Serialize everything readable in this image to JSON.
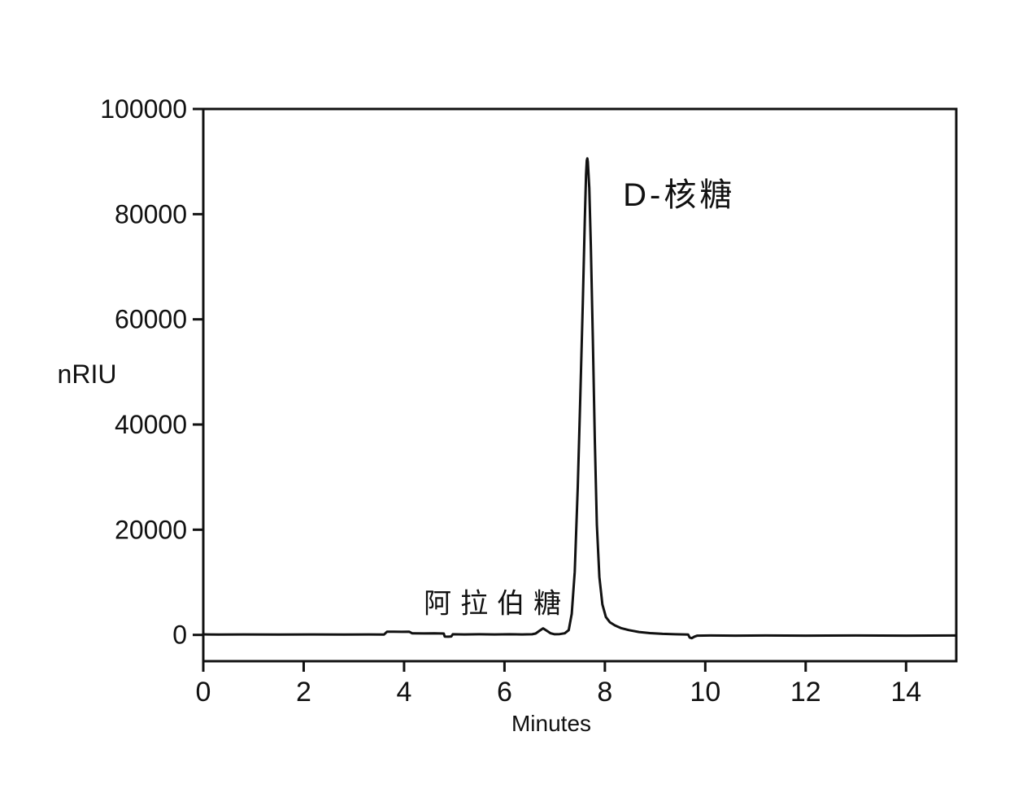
{
  "figure": {
    "background_color": "#ffffff",
    "line_color": "#111111"
  },
  "chart_data": {
    "type": "line",
    "title": "",
    "xlabel": "Minutes",
    "ylabel": "nRIU",
    "xlim": [
      0,
      15
    ],
    "ylim": [
      -5000,
      100000
    ],
    "x_ticks": [
      0,
      2,
      4,
      6,
      8,
      10,
      12,
      14
    ],
    "y_ticks": [
      0,
      20000,
      40000,
      60000,
      80000,
      100000
    ],
    "grid": false,
    "frame": "full-box",
    "legend": "none",
    "annotations": [
      {
        "text": "阿拉伯糖",
        "x": 5.85,
        "y": 6500,
        "role": "peak-label-minor"
      },
      {
        "text": "D-核糖",
        "x": 9.48,
        "y": 84200,
        "role": "peak-label-major"
      }
    ],
    "peaks": [
      {
        "name": "阿拉伯糖",
        "retention_time_min": 6.77,
        "height_nRIU": 1250
      },
      {
        "name": "D-核糖",
        "retention_time_min": 7.65,
        "height_nRIU": 90600
      }
    ],
    "series": [
      {
        "name": "RI signal",
        "color": "#111111",
        "points": [
          [
            0.0,
            100
          ],
          [
            0.3,
            50
          ],
          [
            0.8,
            80
          ],
          [
            1.5,
            50
          ],
          [
            2.2,
            80
          ],
          [
            2.8,
            50
          ],
          [
            3.3,
            80
          ],
          [
            3.6,
            60
          ],
          [
            3.66,
            600
          ],
          [
            3.8,
            620
          ],
          [
            3.95,
            580
          ],
          [
            4.1,
            620
          ],
          [
            4.16,
            300
          ],
          [
            4.4,
            280
          ],
          [
            4.6,
            300
          ],
          [
            4.79,
            260
          ],
          [
            4.81,
            -320
          ],
          [
            4.88,
            -350
          ],
          [
            4.94,
            -300
          ],
          [
            4.97,
            120
          ],
          [
            5.2,
            80
          ],
          [
            5.5,
            120
          ],
          [
            5.8,
            80
          ],
          [
            6.1,
            120
          ],
          [
            6.35,
            80
          ],
          [
            6.55,
            120
          ],
          [
            6.62,
            250
          ],
          [
            6.7,
            800
          ],
          [
            6.77,
            1250
          ],
          [
            6.84,
            800
          ],
          [
            6.92,
            300
          ],
          [
            7.0,
            120
          ],
          [
            7.1,
            150
          ],
          [
            7.2,
            300
          ],
          [
            7.28,
            900
          ],
          [
            7.34,
            4000
          ],
          [
            7.4,
            12000
          ],
          [
            7.46,
            28000
          ],
          [
            7.51,
            45000
          ],
          [
            7.56,
            63000
          ],
          [
            7.6,
            79000
          ],
          [
            7.625,
            87500
          ],
          [
            7.64,
            90200
          ],
          [
            7.65,
            90600
          ],
          [
            7.66,
            90000
          ],
          [
            7.69,
            85000
          ],
          [
            7.72,
            74000
          ],
          [
            7.76,
            56000
          ],
          [
            7.8,
            37000
          ],
          [
            7.84,
            21000
          ],
          [
            7.89,
            11000
          ],
          [
            7.95,
            5800
          ],
          [
            8.02,
            3400
          ],
          [
            8.1,
            2400
          ],
          [
            8.2,
            1800
          ],
          [
            8.32,
            1300
          ],
          [
            8.48,
            900
          ],
          [
            8.68,
            550
          ],
          [
            8.9,
            330
          ],
          [
            9.15,
            200
          ],
          [
            9.4,
            120
          ],
          [
            9.58,
            80
          ],
          [
            9.66,
            60
          ],
          [
            9.69,
            -500
          ],
          [
            9.73,
            -620
          ],
          [
            9.78,
            -350
          ],
          [
            9.84,
            -150
          ],
          [
            10.1,
            -120
          ],
          [
            10.6,
            -150
          ],
          [
            11.2,
            -120
          ],
          [
            12.0,
            -150
          ],
          [
            13.0,
            -120
          ],
          [
            14.0,
            -150
          ],
          [
            15.0,
            -120
          ]
        ]
      }
    ]
  }
}
